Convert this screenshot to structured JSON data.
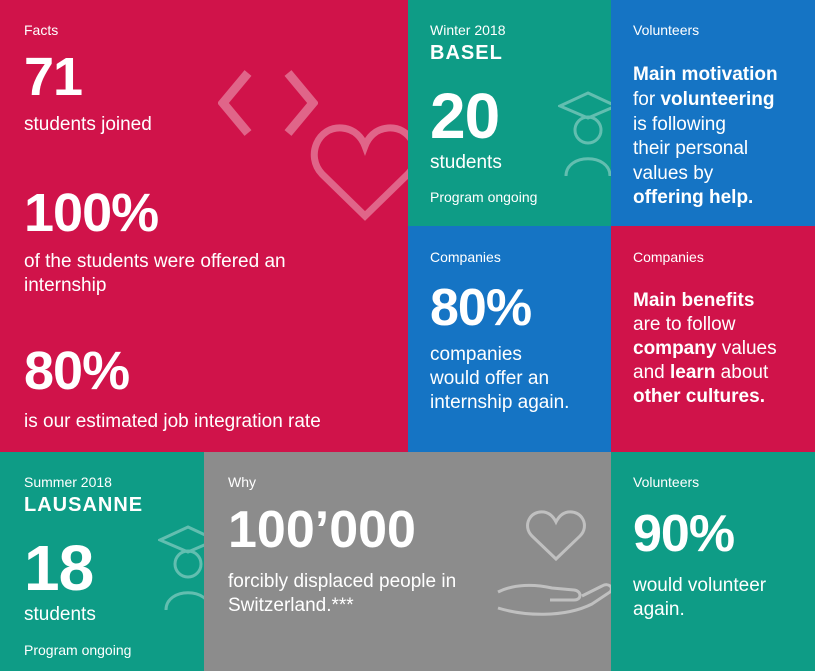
{
  "facts": {
    "label": "Facts",
    "stat1_value": "71",
    "stat1_text": "students joined",
    "stat2_value": "100%",
    "stat2_text_line1": "of the students were offered an",
    "stat2_text_line2": "internship",
    "stat3_value": "80%",
    "stat3_text": "is our estimated job integration rate"
  },
  "basel": {
    "season": "Winter 2018",
    "city": "BASEL",
    "count": "20",
    "unit": "students",
    "status": "Program ongoing"
  },
  "volunteers_top": {
    "label": "Volunteers",
    "l1": "Main motivation",
    "l2a": "for ",
    "l2b": "volunteering",
    "l3": "is following",
    "l4": "their personal",
    "l5": "values by",
    "l6": "offering help."
  },
  "companies_blue": {
    "label": "Companies",
    "value": "80%",
    "l1": "companies",
    "l2": "would offer an",
    "l3": "internship again."
  },
  "companies_red": {
    "label": "Companies",
    "l1": "Main benefits",
    "l2": "are to follow",
    "l3a": "company",
    "l3b": " values",
    "l4a": "and ",
    "l4b": "learn",
    "l4c": " about",
    "l5": "other cultures."
  },
  "lausanne": {
    "season": "Summer 2018",
    "city": "LAUSANNE",
    "count": "18",
    "unit": "students",
    "status": "Program ongoing"
  },
  "why": {
    "label": "Why",
    "value": "100’000",
    "l1": "forcibly displaced people in",
    "l2": "Switzerland.***"
  },
  "volunteers_bottom": {
    "label": "Volunteers",
    "value": "90%",
    "l1": "would volunteer",
    "l2": "again."
  },
  "colors": {
    "red": "#d0134a",
    "teal": "#0e9c86",
    "blue": "#1574c4",
    "gray": "#8c8c8c"
  }
}
